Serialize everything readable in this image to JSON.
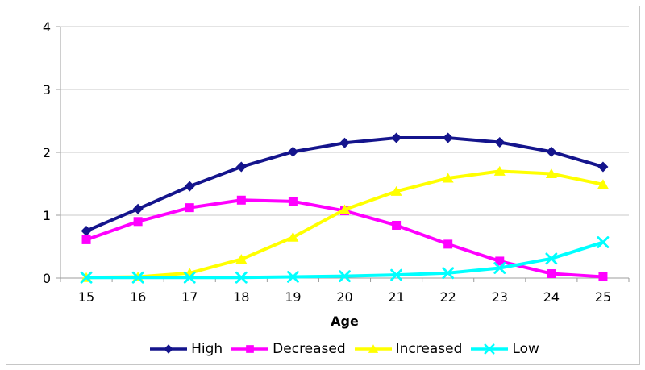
{
  "chart_data": {
    "type": "line",
    "title": "",
    "xlabel": "Age",
    "ylabel": "",
    "x": [
      "15",
      "16",
      "17",
      "18",
      "19",
      "20",
      "21",
      "22",
      "23",
      "24",
      "25"
    ],
    "yticks": [
      "0",
      "1",
      "2",
      "3",
      "4"
    ],
    "ylim": [
      0,
      4
    ],
    "grid": "horizontal",
    "legend_position": "bottom",
    "series": [
      {
        "name": "High",
        "marker": "diamond",
        "color": "#14148C",
        "values": [
          0.75,
          1.1,
          1.46,
          1.77,
          2.01,
          2.15,
          2.23,
          2.23,
          2.16,
          2.01,
          1.77
        ]
      },
      {
        "name": "Decreased",
        "marker": "square",
        "color": "#FF00FF",
        "values": [
          0.61,
          0.9,
          1.12,
          1.24,
          1.22,
          1.07,
          0.84,
          0.54,
          0.27,
          0.07,
          0.02
        ]
      },
      {
        "name": "Increased",
        "marker": "triangle",
        "color": "#FFFF00",
        "values": [
          0.01,
          0.02,
          0.08,
          0.3,
          0.65,
          1.09,
          1.38,
          1.59,
          1.7,
          1.66,
          1.49
        ]
      },
      {
        "name": "Low",
        "marker": "x",
        "color": "#00FFFF",
        "values": [
          0.01,
          0.01,
          0.01,
          0.01,
          0.02,
          0.03,
          0.05,
          0.08,
          0.16,
          0.31,
          0.57
        ]
      }
    ]
  },
  "style": {
    "background": "#FFFFFF",
    "border_color": "#C6C6C6",
    "gridline_color": "#C9C9C9",
    "axis_color": "#9C9C9C",
    "text_color": "#000000"
  }
}
